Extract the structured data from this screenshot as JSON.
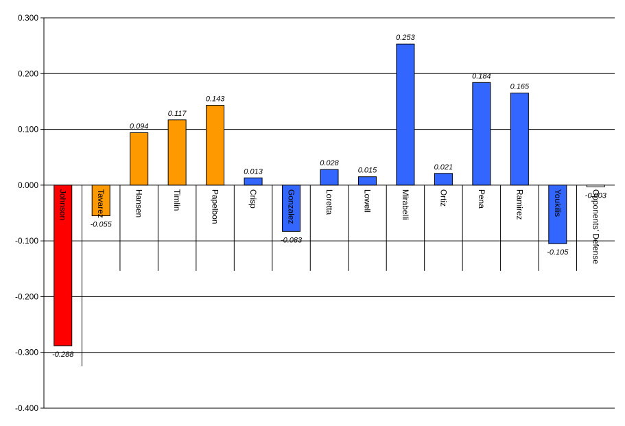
{
  "chart_data": {
    "type": "bar",
    "title": "",
    "xlabel": "",
    "ylabel": "",
    "ylim": [
      -0.4,
      0.3
    ],
    "yticks": [
      0.3,
      0.2,
      0.1,
      0.0,
      -0.1,
      -0.2,
      -0.3,
      -0.4
    ],
    "ytick_labels": [
      "0.300",
      "0.200",
      "0.100",
      "0.000",
      "-0.100",
      "-0.200",
      "-0.300",
      "-0.400"
    ],
    "grid": true,
    "legend": "none",
    "categories": [
      "Johnson",
      "Tavarez",
      "Hansen",
      "Timlin",
      "Papelbon",
      "Crisp",
      "Gonzalez",
      "Loretta",
      "Lowell",
      "Mirabelli",
      "Ortiz",
      "Pena",
      "Ramirez",
      "Youkilis",
      "Opponents' Defense"
    ],
    "values": [
      -0.288,
      -0.055,
      0.094,
      0.117,
      0.143,
      0.013,
      -0.083,
      0.028,
      0.015,
      0.253,
      0.021,
      0.184,
      0.165,
      -0.105,
      -0.003
    ],
    "value_labels": [
      "-0.288",
      "-0.055",
      "0.094",
      "0.117",
      "0.143",
      "0.013",
      "-0.083",
      "0.028",
      "0.015",
      "0.253",
      "0.021",
      "0.184",
      "0.165",
      "-0.105",
      "-0.003"
    ],
    "colors": [
      "#ff0000",
      "#ff9900",
      "#ff9900",
      "#ff9900",
      "#ff9900",
      "#3366ff",
      "#3366ff",
      "#3366ff",
      "#3366ff",
      "#3366ff",
      "#3366ff",
      "#3366ff",
      "#3366ff",
      "#3366ff",
      "#ffffff"
    ]
  }
}
